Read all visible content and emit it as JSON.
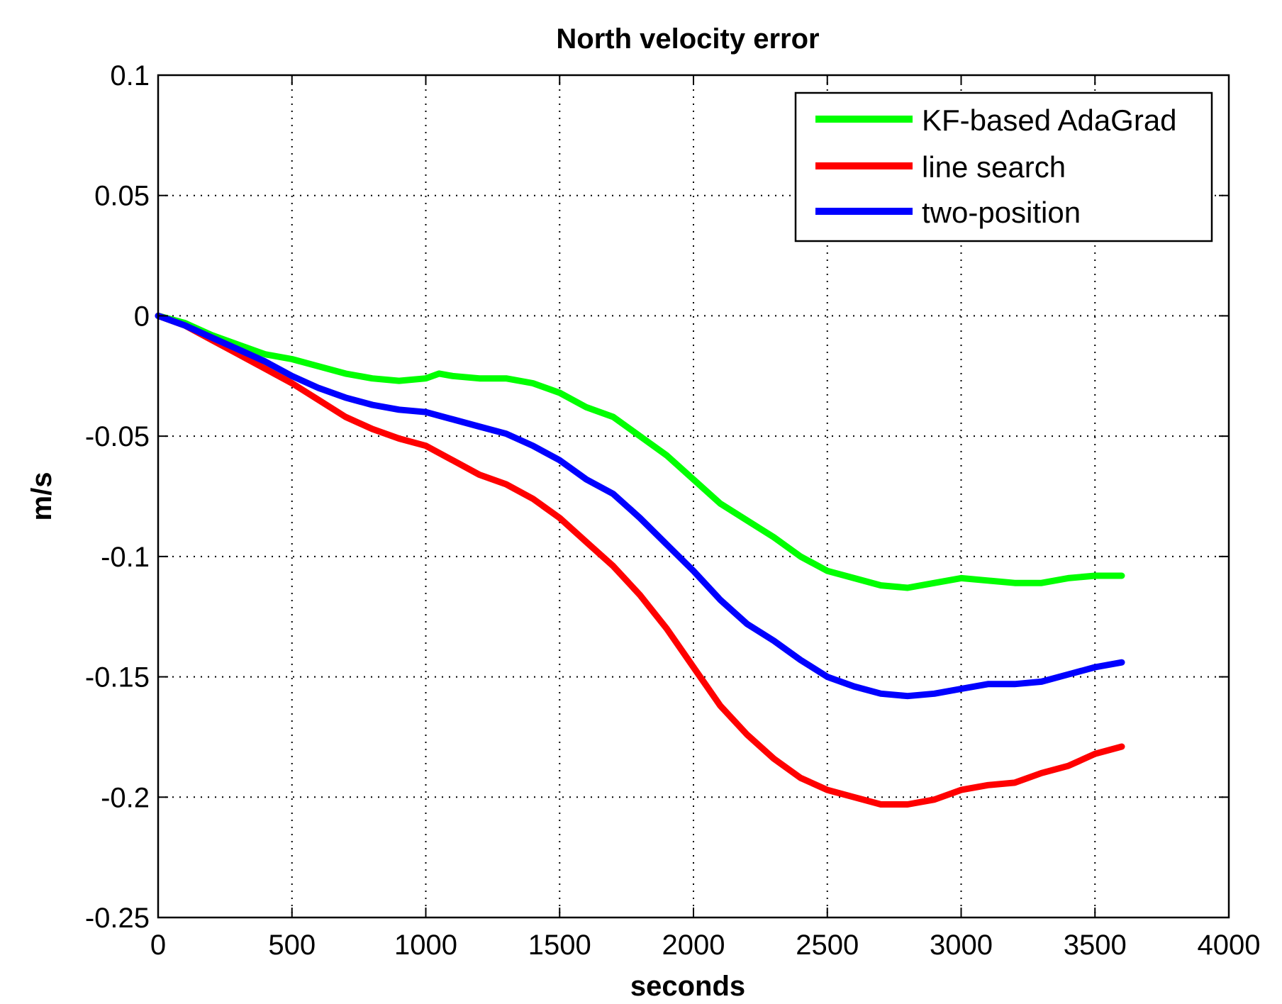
{
  "chart_data": {
    "type": "line",
    "title": "North velocity error",
    "xlabel": "seconds",
    "ylabel": "m/s",
    "xlim": [
      0,
      4000
    ],
    "ylim": [
      -0.25,
      0.1
    ],
    "xticks": [
      0,
      500,
      1000,
      1500,
      2000,
      2500,
      3000,
      3500,
      4000
    ],
    "xtick_labels": [
      "0",
      "500",
      "1000",
      "1500",
      "2000",
      "2500",
      "3000",
      "3500",
      "4000"
    ],
    "yticks": [
      0.1,
      0.05,
      0,
      -0.05,
      -0.1,
      -0.15,
      -0.2,
      -0.25
    ],
    "ytick_labels": [
      "0.1",
      "0.05",
      "0",
      "-0.05",
      "-0.1",
      "-0.15",
      "-0.2",
      "-0.25"
    ],
    "grid": true,
    "legend_position": "top-right",
    "series": [
      {
        "name": "KF-based AdaGrad",
        "color": "#00ff00",
        "x": [
          0,
          100,
          200,
          300,
          400,
          500,
          600,
          700,
          800,
          900,
          1000,
          1050,
          1100,
          1200,
          1300,
          1400,
          1500,
          1600,
          1700,
          1800,
          1900,
          2000,
          2100,
          2200,
          2300,
          2400,
          2500,
          2600,
          2700,
          2800,
          2900,
          3000,
          3100,
          3200,
          3300,
          3400,
          3500,
          3600
        ],
        "y": [
          0,
          -0.003,
          -0.008,
          -0.012,
          -0.016,
          -0.018,
          -0.021,
          -0.024,
          -0.026,
          -0.027,
          -0.026,
          -0.024,
          -0.025,
          -0.026,
          -0.026,
          -0.028,
          -0.032,
          -0.038,
          -0.042,
          -0.05,
          -0.058,
          -0.068,
          -0.078,
          -0.085,
          -0.092,
          -0.1,
          -0.106,
          -0.109,
          -0.112,
          -0.113,
          -0.111,
          -0.109,
          -0.11,
          -0.111,
          -0.111,
          -0.109,
          -0.108,
          -0.108
        ]
      },
      {
        "name": "line search",
        "color": "#ff0000",
        "x": [
          0,
          100,
          200,
          300,
          400,
          500,
          600,
          700,
          800,
          900,
          1000,
          1100,
          1200,
          1300,
          1400,
          1500,
          1600,
          1700,
          1800,
          1900,
          2000,
          2100,
          2200,
          2300,
          2400,
          2500,
          2600,
          2700,
          2800,
          2900,
          3000,
          3100,
          3200,
          3300,
          3400,
          3500,
          3600
        ],
        "y": [
          0,
          -0.004,
          -0.01,
          -0.016,
          -0.022,
          -0.028,
          -0.035,
          -0.042,
          -0.047,
          -0.051,
          -0.054,
          -0.06,
          -0.066,
          -0.07,
          -0.076,
          -0.084,
          -0.094,
          -0.104,
          -0.116,
          -0.13,
          -0.146,
          -0.162,
          -0.174,
          -0.184,
          -0.192,
          -0.197,
          -0.2,
          -0.203,
          -0.203,
          -0.201,
          -0.197,
          -0.195,
          -0.194,
          -0.19,
          -0.187,
          -0.182,
          -0.179
        ]
      },
      {
        "name": "two-position",
        "color": "#0000ff",
        "x": [
          0,
          100,
          200,
          300,
          400,
          500,
          600,
          700,
          800,
          900,
          1000,
          1100,
          1200,
          1300,
          1400,
          1500,
          1600,
          1700,
          1800,
          1900,
          2000,
          2100,
          2200,
          2300,
          2400,
          2500,
          2600,
          2700,
          2800,
          2900,
          3000,
          3100,
          3200,
          3300,
          3400,
          3500,
          3600
        ],
        "y": [
          0,
          -0.004,
          -0.009,
          -0.014,
          -0.019,
          -0.025,
          -0.03,
          -0.034,
          -0.037,
          -0.039,
          -0.04,
          -0.043,
          -0.046,
          -0.049,
          -0.054,
          -0.06,
          -0.068,
          -0.074,
          -0.084,
          -0.095,
          -0.106,
          -0.118,
          -0.128,
          -0.135,
          -0.143,
          -0.15,
          -0.154,
          -0.157,
          -0.158,
          -0.157,
          -0.155,
          -0.153,
          -0.153,
          -0.152,
          -0.149,
          -0.146,
          -0.144
        ]
      }
    ]
  }
}
